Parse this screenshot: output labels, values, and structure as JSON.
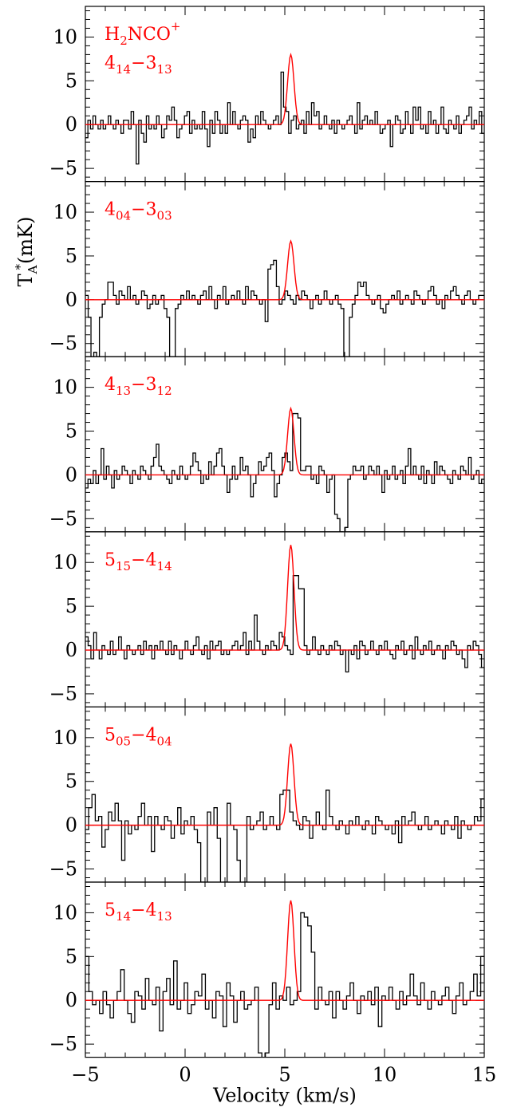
{
  "chart_data": {
    "type": "line",
    "xlabel": "Velocity (km/s)",
    "ylabel": {
      "base": "T",
      "sub": "A",
      "sup": "*",
      "rest": "(mK)"
    },
    "xlim": [
      -5,
      15
    ],
    "ylim": [
      -6.5,
      13.5
    ],
    "x_ticks": [
      "−5",
      "0",
      "5",
      "10",
      "15"
    ],
    "y_ticks": [
      "10",
      "5",
      "0",
      "−5"
    ],
    "colors": {
      "observed": "#000000",
      "model": "#ff0000"
    },
    "species": {
      "base": "H",
      "sub": "2",
      "rest": "NCO",
      "sup": "+"
    },
    "panels": [
      {
        "transition": {
          "upper": "4",
          "upper_sub": "14",
          "dash": "−",
          "lower": "3",
          "lower_sub": "13"
        },
        "model_peak": 8.0,
        "observed": [
          -1.5,
          0.5,
          -0.5,
          1,
          0,
          -0.5,
          0.5,
          -0.5,
          0,
          1,
          0,
          -0.5,
          0.5,
          0,
          -1,
          0.5,
          0.5,
          -0.5,
          1.5,
          0,
          -4.5,
          0.5,
          -1,
          -2,
          1,
          -0.5,
          0,
          -0.5,
          1,
          0,
          -1.5,
          -0.5,
          1,
          0.5,
          2,
          0.5,
          -1.5,
          -0.5,
          0,
          1,
          1.5,
          -1,
          0.5,
          -0.5,
          0,
          -0.5,
          1.5,
          -0.5,
          -2.5,
          0.5,
          -1,
          1.5,
          0.5,
          -1,
          0,
          -1,
          2.5,
          0,
          1.5,
          0,
          -0.5,
          0.5,
          1,
          0.5,
          -2,
          -0.5,
          -1.5,
          1,
          0,
          1.5,
          0.5,
          0,
          -0.5,
          0,
          0.5,
          1,
          0,
          6,
          2,
          1.5,
          -1,
          0.5,
          1,
          -0.5,
          0,
          0.5,
          -1,
          1.5,
          0,
          2.5,
          1,
          1.5,
          -0.5,
          0,
          1,
          0,
          -0.5,
          0.5,
          -1,
          0.5,
          0,
          -0.5,
          0,
          0.5,
          1,
          0,
          -1,
          2.5,
          -0.5,
          0.5,
          1,
          0,
          0.5,
          0,
          1.5,
          0,
          -1,
          -0.5,
          0,
          0.5,
          -2.5,
          0,
          1,
          0.5,
          -1,
          -0.5,
          1.5,
          0,
          -1,
          2,
          0.5,
          2,
          -0.5,
          0,
          -1,
          1.5,
          0,
          0.5,
          -1,
          0,
          2,
          -0.5,
          -1,
          0.5,
          0,
          -0.5,
          1,
          -1,
          0,
          0.5,
          1,
          2,
          -0.5,
          0.5,
          0,
          1.5,
          -1
        ]
      },
      {
        "transition": {
          "upper": "4",
          "upper_sub": "04",
          "dash": "−",
          "lower": "3",
          "lower_sub": "03"
        },
        "model_peak": 6.7,
        "observed": [
          0.5,
          -2,
          -6.5,
          -6,
          -6.5,
          -2,
          -0.5,
          0,
          2,
          2,
          0.5,
          -0.5,
          1,
          0.5,
          0,
          1.5,
          0,
          0.5,
          -0.5,
          0,
          1,
          0.5,
          -1,
          -0.5,
          0.5,
          -0.5,
          0,
          0.5,
          -1,
          -2,
          -6.5,
          -7,
          -1,
          -0.5,
          0.5,
          0,
          1,
          0,
          0.5,
          0,
          -0.5,
          0.5,
          1,
          0,
          1.5,
          0,
          -1,
          0.5,
          0,
          1.5,
          -0.5,
          0,
          0.5,
          0,
          1,
          0,
          -0.5,
          1.5,
          0,
          1,
          0.5,
          0,
          -0.5,
          0,
          -2.5,
          3.5,
          4,
          4.5,
          1.5,
          -0.5,
          0,
          1,
          0.5,
          0,
          -0.5,
          0.5,
          0,
          1,
          0.5,
          0,
          -1,
          0,
          0.5,
          -0.5,
          0,
          1,
          0,
          -0.5,
          0,
          0.5,
          -0.5,
          -1,
          -6.5,
          -7,
          -2,
          -0.5,
          0.5,
          2,
          1.5,
          2,
          0.5,
          0,
          -0.5,
          0,
          0.5,
          -1,
          -1.5,
          -0.5,
          0,
          0.5,
          0,
          1,
          -0.5,
          0,
          0.5,
          0,
          -0.5,
          1,
          0.5,
          0,
          -0.5,
          0,
          1,
          1.5,
          0.5,
          -0.5,
          0,
          -1,
          0.5,
          0,
          1,
          1.5,
          0.5,
          0,
          -0.5,
          0.5,
          1,
          0,
          -0.5,
          0,
          0.5,
          0.5
        ]
      },
      {
        "transition": {
          "upper": "4",
          "upper_sub": "13",
          "dash": "−",
          "lower": "3",
          "lower_sub": "12"
        },
        "model_peak": 7.6,
        "observed": [
          -1.5,
          -0.5,
          -1,
          0.5,
          -1,
          0,
          3,
          -0.5,
          1,
          0,
          -1.5,
          0.5,
          -0.5,
          0,
          1,
          0.5,
          0,
          -1,
          0.5,
          0,
          -0.5,
          1,
          0.5,
          0,
          -0.5,
          1,
          2,
          3.5,
          1,
          0.5,
          0,
          -0.5,
          -1,
          0.5,
          0,
          -0.5,
          1,
          0,
          -0.5,
          0,
          1,
          2.5,
          1.5,
          0.5,
          -1,
          0,
          -0.5,
          1.5,
          0,
          1,
          2.5,
          3,
          1,
          0,
          -2,
          -0.5,
          1,
          -0.5,
          0,
          2,
          0.5,
          1,
          0,
          -2.5,
          -1,
          0,
          1.5,
          0.5,
          1,
          2,
          2.5,
          0.5,
          -2.5,
          -1,
          0,
          2,
          2.5,
          1.5,
          0.5,
          7,
          7,
          6.5,
          0.5,
          0.5,
          1,
          1,
          -0.5,
          0,
          -1,
          1,
          0.5,
          0,
          -2,
          -0.5,
          0,
          -4.5,
          -5,
          -6.5,
          -7,
          -6,
          -0.5,
          0,
          1,
          0.5,
          0.5,
          1,
          -0.5,
          0,
          1,
          0.5,
          0,
          1,
          0,
          -2,
          0.5,
          -0.5,
          0,
          1,
          -0.5,
          0,
          0.5,
          -1,
          1,
          3,
          0,
          1,
          0,
          -0.5,
          1,
          -1,
          0.5,
          0,
          -1,
          1.5,
          0,
          1,
          0.5,
          0,
          -0.5,
          -1,
          0.5,
          0,
          -0.5,
          1,
          0.5,
          0,
          2,
          -0.5,
          0,
          0.5,
          -1,
          -0.5
        ]
      },
      {
        "transition": {
          "upper": "5",
          "upper_sub": "15",
          "dash": "−",
          "lower": "4",
          "lower_sub": "14"
        },
        "model_peak": 12.0,
        "observed": [
          1.5,
          0.5,
          -1,
          2,
          0,
          -1,
          0.5,
          0,
          -0.5,
          1,
          -0.5,
          0,
          1.5,
          0,
          -1,
          0.5,
          0,
          -0.5,
          0,
          0.5,
          -0.5,
          1,
          0,
          0.5,
          -1,
          0.5,
          0,
          1,
          0,
          -0.5,
          1,
          -0.5,
          0.5,
          0,
          -1,
          0,
          1,
          0,
          -0.5,
          0.5,
          1.5,
          0,
          -0.5,
          0.5,
          -1,
          1,
          0,
          0.5,
          1,
          -0.5,
          0,
          -0.5,
          0,
          0.5,
          1,
          0,
          0.5,
          2,
          -0.5,
          1,
          0,
          4,
          1,
          0,
          -0.5,
          0.5,
          0,
          1,
          0.5,
          0,
          2,
          1.5,
          0.5,
          0,
          -0.5,
          8.5,
          8.5,
          7,
          7,
          0.5,
          -0.5,
          0,
          1.5,
          0,
          -0.5,
          0.5,
          0,
          -0.5,
          0.5,
          0,
          1,
          0.5,
          -0.5,
          0,
          -2.5,
          0,
          -0.5,
          0.5,
          -1,
          1,
          0.5,
          -0.5,
          0,
          1,
          0,
          -0.5,
          0.5,
          0,
          1,
          0,
          -0.5,
          -1,
          0.5,
          0,
          1,
          -0.5,
          0,
          0.5,
          -1,
          1.5,
          0,
          -0.5,
          0.5,
          0,
          1,
          -0.5,
          0,
          0.5,
          0,
          -1,
          0.5,
          0,
          1,
          0.5,
          -0.5,
          0,
          -1,
          -2,
          0.5,
          0,
          1,
          0.5,
          -0.5,
          -2
        ]
      },
      {
        "transition": {
          "upper": "5",
          "upper_sub": "05",
          "dash": "−",
          "lower": "4",
          "lower_sub": "04"
        },
        "model_peak": 9.3,
        "observed": [
          -0.5,
          2,
          3.5,
          0.5,
          1,
          -2.5,
          -0.5,
          1.5,
          0.5,
          2.5,
          0.5,
          -4,
          0.5,
          -1,
          0,
          -0.5,
          1,
          2.5,
          0,
          1,
          -3,
          1,
          0,
          -0.5,
          1,
          0.5,
          -1.5,
          0,
          2,
          -1,
          0.5,
          0,
          1,
          -0.5,
          -2,
          -6.5,
          -7,
          1.5,
          0,
          2,
          -1.5,
          -7,
          -6.5,
          2.5,
          0,
          -0.5,
          -4,
          -7,
          -6.5,
          1,
          -0.5,
          0,
          0.5,
          1.5,
          -0.5,
          0,
          1,
          0,
          -0.5,
          3.5,
          4,
          4,
          1.5,
          0.5,
          0,
          -0.5,
          1,
          0.5,
          -1.5,
          0,
          1.5,
          0,
          -0.5,
          4,
          1,
          0,
          -0.5,
          0.5,
          0,
          -1,
          0.5,
          0,
          1,
          0,
          -0.5,
          0.5,
          0,
          -1,
          1,
          0.5,
          0,
          -0.5,
          0,
          -1,
          0.5,
          -2,
          1,
          0,
          0.5,
          1.5,
          0,
          -0.5,
          0,
          1,
          -0.5,
          0,
          0.5,
          0,
          -1,
          0.5,
          0,
          -0.5,
          1,
          -1.5,
          0.5,
          0,
          -0.5,
          0,
          1,
          0.5,
          3
        ]
      },
      {
        "transition": {
          "upper": "5",
          "upper_sub": "14",
          "dash": "−",
          "lower": "4",
          "lower_sub": "13"
        },
        "model_peak": 11.4,
        "observed": [
          5,
          1,
          -0.5,
          0,
          -1.5,
          1,
          -0.5,
          -2,
          0,
          1,
          3.5,
          0,
          -1.5,
          -2.5,
          1,
          0.5,
          -1,
          2.5,
          0,
          -0.5,
          1.5,
          -3.5,
          1,
          2.5,
          -0.5,
          4.5,
          -1,
          0,
          2,
          -1.5,
          -0.5,
          1,
          0.5,
          3,
          -1,
          0,
          -2,
          1,
          0.5,
          -3,
          2,
          0.5,
          -2.5,
          0,
          1,
          -1,
          -0.5,
          0,
          1.5,
          -6,
          -7,
          -6,
          -0.5,
          2,
          -1,
          0.5,
          0,
          1.5,
          -0.5,
          0,
          1,
          10,
          9.5,
          8.5,
          5.5,
          -1,
          1.5,
          0,
          -0.5,
          1,
          -2,
          1,
          0,
          -1,
          0.5,
          2,
          0,
          -1.5,
          0.5,
          0,
          1,
          -0.5,
          1.5,
          -3,
          0.5,
          0,
          1.5,
          0,
          -1,
          1,
          -0.5,
          0.5,
          3,
          0.5,
          -0.5,
          2,
          0,
          -1,
          1,
          0,
          -0.5,
          0.5,
          1.5,
          0,
          -1.5,
          0.5,
          2,
          -0.5,
          0,
          1,
          3,
          0.5,
          5
        ]
      }
    ]
  }
}
